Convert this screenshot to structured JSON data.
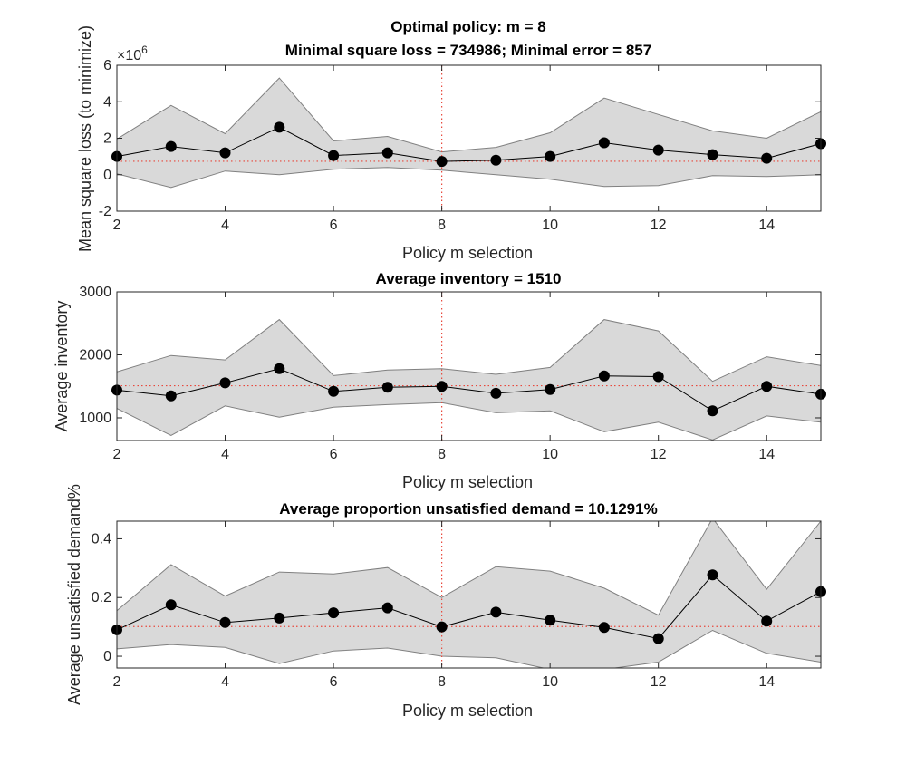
{
  "chart_data": [
    {
      "type": "line",
      "title_lines": [
        "Optimal policy: m = 8",
        "Minimal square loss = 734986; Minimal error = 857"
      ],
      "xlabel": "Policy m selection",
      "ylabel": "Mean square loss (to minimize)",
      "y_exponent_label": "×10",
      "y_exponent_power": "6",
      "xlim": [
        2,
        15
      ],
      "ylim": [
        -2,
        6
      ],
      "xticks": [
        2,
        4,
        6,
        8,
        10,
        12,
        14
      ],
      "yticks": [
        -2,
        0,
        2,
        4,
        6
      ],
      "x": [
        2,
        3,
        4,
        5,
        6,
        7,
        8,
        9,
        10,
        11,
        12,
        13,
        14,
        15
      ],
      "series": [
        {
          "role": "mean",
          "values": [
            1.0,
            1.55,
            1.2,
            2.6,
            1.05,
            1.2,
            0.73,
            0.8,
            1.0,
            1.75,
            1.35,
            1.1,
            0.9,
            1.7
          ]
        },
        {
          "role": "upper",
          "values": [
            1.95,
            3.8,
            2.25,
            5.3,
            1.85,
            2.1,
            1.25,
            1.5,
            2.3,
            4.2,
            3.3,
            2.4,
            2.0,
            3.45
          ]
        },
        {
          "role": "lower",
          "values": [
            0.05,
            -0.7,
            0.2,
            0.0,
            0.3,
            0.4,
            0.25,
            0.0,
            -0.25,
            -0.65,
            -0.6,
            -0.05,
            -0.1,
            0.0
          ]
        }
      ],
      "reference_y": 0.734986,
      "reference_x": 8
    },
    {
      "type": "line",
      "title_lines": [
        "Average inventory = 1510"
      ],
      "xlabel": "Policy m selection",
      "ylabel": "Average inventory",
      "xlim": [
        2,
        15
      ],
      "ylim": [
        640,
        3000
      ],
      "xticks": [
        2,
        4,
        6,
        8,
        10,
        12,
        14
      ],
      "yticks": [
        1000,
        2000,
        3000
      ],
      "x": [
        2,
        3,
        4,
        5,
        6,
        7,
        8,
        9,
        10,
        11,
        12,
        13,
        14,
        15
      ],
      "series": [
        {
          "role": "mean",
          "values": [
            1440,
            1350,
            1555,
            1780,
            1420,
            1485,
            1500,
            1390,
            1450,
            1665,
            1655,
            1110,
            1500,
            1375
          ]
        },
        {
          "role": "upper",
          "values": [
            1730,
            1990,
            1920,
            2560,
            1670,
            1760,
            1780,
            1690,
            1800,
            2560,
            2380,
            1580,
            1970,
            1830
          ]
        },
        {
          "role": "lower",
          "values": [
            1150,
            720,
            1190,
            1010,
            1170,
            1210,
            1240,
            1080,
            1110,
            780,
            930,
            650,
            1030,
            930
          ]
        }
      ],
      "reference_y": 1510,
      "reference_x": 8
    },
    {
      "type": "line",
      "title_lines": [
        "Average proportion unsatisfied demand = 10.1291%"
      ],
      "xlabel": "Policy m selection",
      "ylabel": "Average unsatisfied demand%",
      "xlim": [
        2,
        15
      ],
      "ylim": [
        -0.04,
        0.46
      ],
      "xticks": [
        2,
        4,
        6,
        8,
        10,
        12,
        14
      ],
      "yticks": [
        0,
        0.2,
        0.4
      ],
      "x": [
        2,
        3,
        4,
        5,
        6,
        7,
        8,
        9,
        10,
        11,
        12,
        13,
        14,
        15
      ],
      "series": [
        {
          "role": "mean",
          "values": [
            0.09,
            0.175,
            0.115,
            0.13,
            0.148,
            0.165,
            0.1,
            0.15,
            0.123,
            0.098,
            0.06,
            0.277,
            0.12,
            0.22
          ]
        },
        {
          "role": "upper",
          "values": [
            0.155,
            0.312,
            0.205,
            0.287,
            0.28,
            0.302,
            0.2,
            0.305,
            0.29,
            0.232,
            0.14,
            0.47,
            0.228,
            0.46
          ]
        },
        {
          "role": "lower",
          "values": [
            0.025,
            0.04,
            0.03,
            -0.025,
            0.018,
            0.028,
            0.0,
            -0.005,
            -0.045,
            -0.045,
            -0.02,
            0.088,
            0.01,
            -0.02
          ]
        }
      ],
      "reference_y": 0.101291,
      "reference_x": 8
    }
  ],
  "colors": {
    "band_fill": "#d9d9d9",
    "band_edge": "#808080",
    "mean_line": "#000000",
    "marker": "#000000",
    "reference": "#e8483c",
    "axis": "#262626"
  }
}
